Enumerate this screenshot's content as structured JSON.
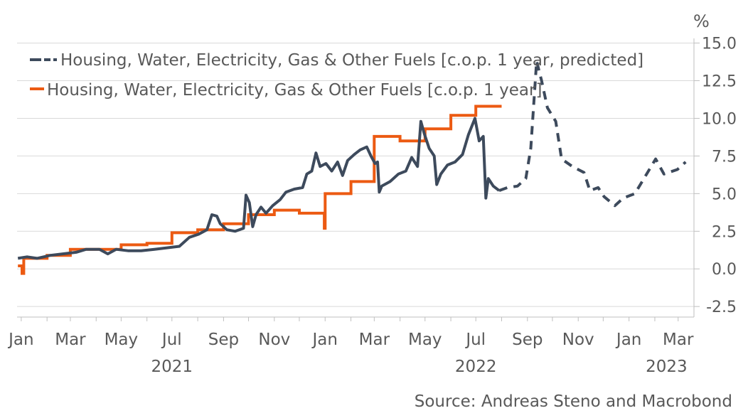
{
  "chart_data": {
    "type": "line",
    "title": "",
    "xlabel": "",
    "ylabel": "%",
    "ylim": [
      -3.2,
      15.5
    ],
    "yticks": [
      "15.0",
      "12.5",
      "10.0",
      "7.5",
      "5.0",
      "2.5",
      "0.0",
      "-2.5"
    ],
    "ytick_values": [
      15.0,
      12.5,
      10.0,
      7.5,
      5.0,
      2.5,
      0.0,
      -2.5
    ],
    "xlim": [
      "2020-12-27",
      "2023-03-20"
    ],
    "xticks": [
      {
        "label": "Jan",
        "date": "2021-01-01"
      },
      {
        "label": "Mar",
        "date": "2021-03-01"
      },
      {
        "label": "May",
        "date": "2021-05-01"
      },
      {
        "label": "Jul",
        "date": "2021-07-01"
      },
      {
        "label": "Sep",
        "date": "2021-09-01"
      },
      {
        "label": "Nov",
        "date": "2021-11-01"
      },
      {
        "label": "Jan",
        "date": "2022-01-01"
      },
      {
        "label": "Mar",
        "date": "2022-03-01"
      },
      {
        "label": "May",
        "date": "2022-05-01"
      },
      {
        "label": "Jul",
        "date": "2022-07-01"
      },
      {
        "label": "Sep",
        "date": "2022-09-01"
      },
      {
        "label": "Nov",
        "date": "2022-11-01"
      },
      {
        "label": "Jan",
        "date": "2023-01-01"
      },
      {
        "label": "Mar",
        "date": "2023-03-01"
      }
    ],
    "years": [
      {
        "label": "2021",
        "date": "2021-07-01"
      },
      {
        "label": "2022",
        "date": "2022-07-01"
      },
      {
        "label": "2023",
        "date": "2023-02-15"
      }
    ],
    "grid": true,
    "legend_position": "top-left",
    "source": "Source: Andreas Steno and Macrobond",
    "colors": {
      "predicted": "#3d4a5c",
      "actual": "#ec5a12",
      "grid": "#d9d9d9",
      "text": "#595959"
    },
    "series": [
      {
        "name": "Housing, Water, Electricity, Gas & Other Fuels [c.o.p. 1 year, predicted]",
        "style": "solid-then-dashed",
        "solid_until": "2022-07-29",
        "points": [
          [
            "2020-12-28",
            0.7
          ],
          [
            "2021-01-08",
            0.8
          ],
          [
            "2021-01-20",
            0.7
          ],
          [
            "2021-02-05",
            0.9
          ],
          [
            "2021-02-20",
            1.0
          ],
          [
            "2021-03-08",
            1.1
          ],
          [
            "2021-03-20",
            1.3
          ],
          [
            "2021-04-05",
            1.3
          ],
          [
            "2021-04-15",
            1.0
          ],
          [
            "2021-04-25",
            1.3
          ],
          [
            "2021-05-10",
            1.2
          ],
          [
            "2021-05-25",
            1.2
          ],
          [
            "2021-06-10",
            1.3
          ],
          [
            "2021-06-25",
            1.4
          ],
          [
            "2021-07-10",
            1.5
          ],
          [
            "2021-07-22",
            2.1
          ],
          [
            "2021-08-02",
            2.3
          ],
          [
            "2021-08-12",
            2.6
          ],
          [
            "2021-08-18",
            3.6
          ],
          [
            "2021-08-24",
            3.5
          ],
          [
            "2021-08-28",
            3.0
          ],
          [
            "2021-09-05",
            2.6
          ],
          [
            "2021-09-15",
            2.5
          ],
          [
            "2021-09-25",
            2.7
          ],
          [
            "2021-09-28",
            4.9
          ],
          [
            "2021-10-02",
            4.4
          ],
          [
            "2021-10-06",
            2.8
          ],
          [
            "2021-10-10",
            3.6
          ],
          [
            "2021-10-16",
            4.1
          ],
          [
            "2021-10-22",
            3.7
          ],
          [
            "2021-10-30",
            4.2
          ],
          [
            "2021-11-08",
            4.6
          ],
          [
            "2021-11-15",
            5.1
          ],
          [
            "2021-11-25",
            5.3
          ],
          [
            "2021-12-05",
            5.4
          ],
          [
            "2021-12-10",
            6.3
          ],
          [
            "2021-12-16",
            6.5
          ],
          [
            "2021-12-21",
            7.7
          ],
          [
            "2021-12-26",
            6.8
          ],
          [
            "2022-01-02",
            7.0
          ],
          [
            "2022-01-09",
            6.5
          ],
          [
            "2022-01-16",
            7.1
          ],
          [
            "2022-01-22",
            6.2
          ],
          [
            "2022-01-28",
            7.2
          ],
          [
            "2022-02-05",
            7.6
          ],
          [
            "2022-02-12",
            7.9
          ],
          [
            "2022-02-20",
            8.1
          ],
          [
            "2022-02-25",
            7.5
          ],
          [
            "2022-03-02",
            7.0
          ],
          [
            "2022-03-05",
            7.1
          ],
          [
            "2022-03-07",
            5.1
          ],
          [
            "2022-03-10",
            5.5
          ],
          [
            "2022-03-20",
            5.8
          ],
          [
            "2022-03-30",
            6.3
          ],
          [
            "2022-04-08",
            6.5
          ],
          [
            "2022-04-15",
            7.4
          ],
          [
            "2022-04-22",
            6.8
          ],
          [
            "2022-04-26",
            9.8
          ],
          [
            "2022-04-30",
            9.0
          ],
          [
            "2022-05-06",
            8.0
          ],
          [
            "2022-05-12",
            7.5
          ],
          [
            "2022-05-15",
            5.6
          ],
          [
            "2022-05-20",
            6.3
          ],
          [
            "2022-05-28",
            6.9
          ],
          [
            "2022-06-06",
            7.1
          ],
          [
            "2022-06-15",
            7.6
          ],
          [
            "2022-06-22",
            8.9
          ],
          [
            "2022-06-30",
            10.0
          ],
          [
            "2022-07-05",
            8.5
          ],
          [
            "2022-07-10",
            8.8
          ],
          [
            "2022-07-13",
            4.7
          ],
          [
            "2022-07-16",
            6.0
          ],
          [
            "2022-07-22",
            5.5
          ],
          [
            "2022-07-29",
            5.2
          ],
          [
            "2022-08-08",
            5.4
          ],
          [
            "2022-08-20",
            5.5
          ],
          [
            "2022-08-30",
            6.0
          ],
          [
            "2022-09-05",
            8.0
          ],
          [
            "2022-09-12",
            13.8
          ],
          [
            "2022-09-18",
            12.5
          ],
          [
            "2022-09-25",
            10.7
          ],
          [
            "2022-10-05",
            9.8
          ],
          [
            "2022-10-12",
            7.3
          ],
          [
            "2022-10-25",
            6.8
          ],
          [
            "2022-11-08",
            6.4
          ],
          [
            "2022-11-15",
            5.2
          ],
          [
            "2022-11-25",
            5.4
          ],
          [
            "2022-12-02",
            4.8
          ],
          [
            "2022-12-15",
            4.2
          ],
          [
            "2022-12-25",
            4.7
          ],
          [
            "2023-01-08",
            5.0
          ],
          [
            "2023-01-20",
            6.1
          ],
          [
            "2023-02-02",
            7.3
          ],
          [
            "2023-02-12",
            6.3
          ],
          [
            "2023-02-28",
            6.6
          ],
          [
            "2023-03-10",
            7.1
          ]
        ]
      },
      {
        "name": "Housing, Water, Electricity, Gas & Other Fuels [c.o.p. 1 year]",
        "style": "step",
        "points": [
          [
            "2020-12-28",
            0.2
          ],
          [
            "2021-01-02",
            0.2
          ],
          [
            "2021-01-02",
            -0.3
          ],
          [
            "2021-01-04",
            -0.3
          ],
          [
            "2021-01-04",
            0.7
          ],
          [
            "2021-02-01",
            0.7
          ],
          [
            "2021-02-01",
            0.9
          ],
          [
            "2021-03-01",
            0.9
          ],
          [
            "2021-03-01",
            1.3
          ],
          [
            "2021-04-01",
            1.3
          ],
          [
            "2021-04-01",
            1.3
          ],
          [
            "2021-05-01",
            1.3
          ],
          [
            "2021-05-01",
            1.6
          ],
          [
            "2021-06-01",
            1.6
          ],
          [
            "2021-06-01",
            1.7
          ],
          [
            "2021-07-01",
            1.7
          ],
          [
            "2021-07-01",
            2.4
          ],
          [
            "2021-08-01",
            2.4
          ],
          [
            "2021-08-01",
            2.6
          ],
          [
            "2021-09-01",
            2.6
          ],
          [
            "2021-09-01",
            3.0
          ],
          [
            "2021-10-01",
            3.0
          ],
          [
            "2021-10-01",
            3.6
          ],
          [
            "2021-11-01",
            3.6
          ],
          [
            "2021-11-01",
            3.9
          ],
          [
            "2021-12-01",
            3.9
          ],
          [
            "2021-12-01",
            3.7
          ],
          [
            "2021-12-31",
            3.7
          ],
          [
            "2021-12-31",
            2.7
          ],
          [
            "2022-01-01",
            2.7
          ],
          [
            "2022-01-01",
            5.0
          ],
          [
            "2022-02-01",
            5.0
          ],
          [
            "2022-02-01",
            5.8
          ],
          [
            "2022-03-01",
            5.8
          ],
          [
            "2022-03-01",
            8.8
          ],
          [
            "2022-04-01",
            8.8
          ],
          [
            "2022-04-01",
            8.5
          ],
          [
            "2022-05-01",
            8.5
          ],
          [
            "2022-05-01",
            9.3
          ],
          [
            "2022-06-01",
            9.3
          ],
          [
            "2022-06-01",
            10.2
          ],
          [
            "2022-07-01",
            10.2
          ],
          [
            "2022-07-01",
            10.8
          ],
          [
            "2022-08-01",
            10.8
          ]
        ]
      }
    ]
  }
}
